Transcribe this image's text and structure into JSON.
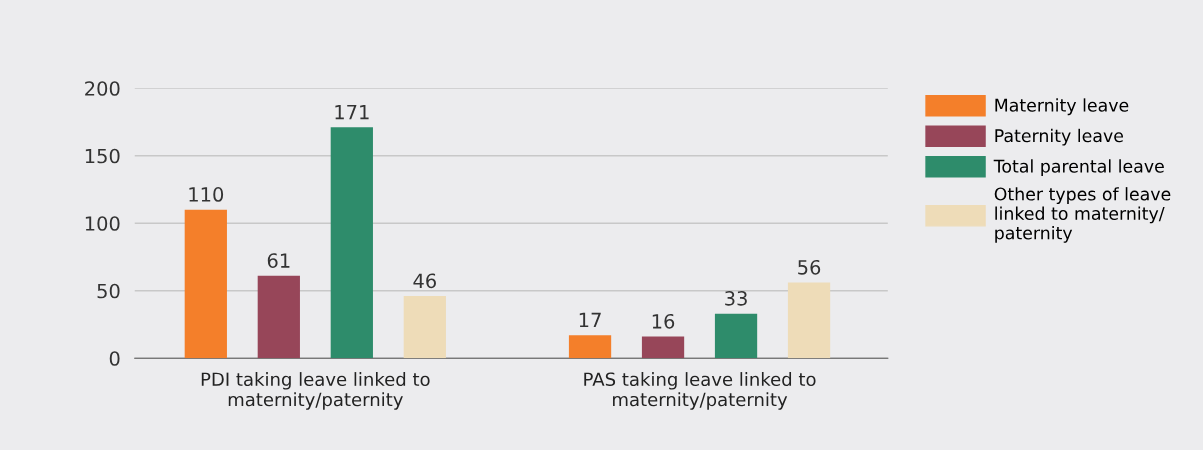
{
  "chart_data": {
    "type": "bar",
    "categories": [
      "PDI taking leave linked to\nmaternity/paternity",
      "PAS taking leave linked to\nmaternity/paternity"
    ],
    "series": [
      {
        "name": "Maternity leave",
        "color": "#f47f2a",
        "values": [
          110,
          17
        ]
      },
      {
        "name": "Paternity leave",
        "color": "#974659",
        "values": [
          61,
          16
        ]
      },
      {
        "name": "Total parental leave",
        "color": "#2e8c6b",
        "values": [
          171,
          33
        ]
      },
      {
        "name": "Other types of leave\nlinked to maternity/\npaternity",
        "color": "#eedcb8",
        "values": [
          46,
          56
        ]
      }
    ],
    "ylim": [
      0,
      200
    ],
    "yticks": [
      0,
      50,
      100,
      150,
      200
    ],
    "grid": "y",
    "legend": "right",
    "data_labels": true
  }
}
